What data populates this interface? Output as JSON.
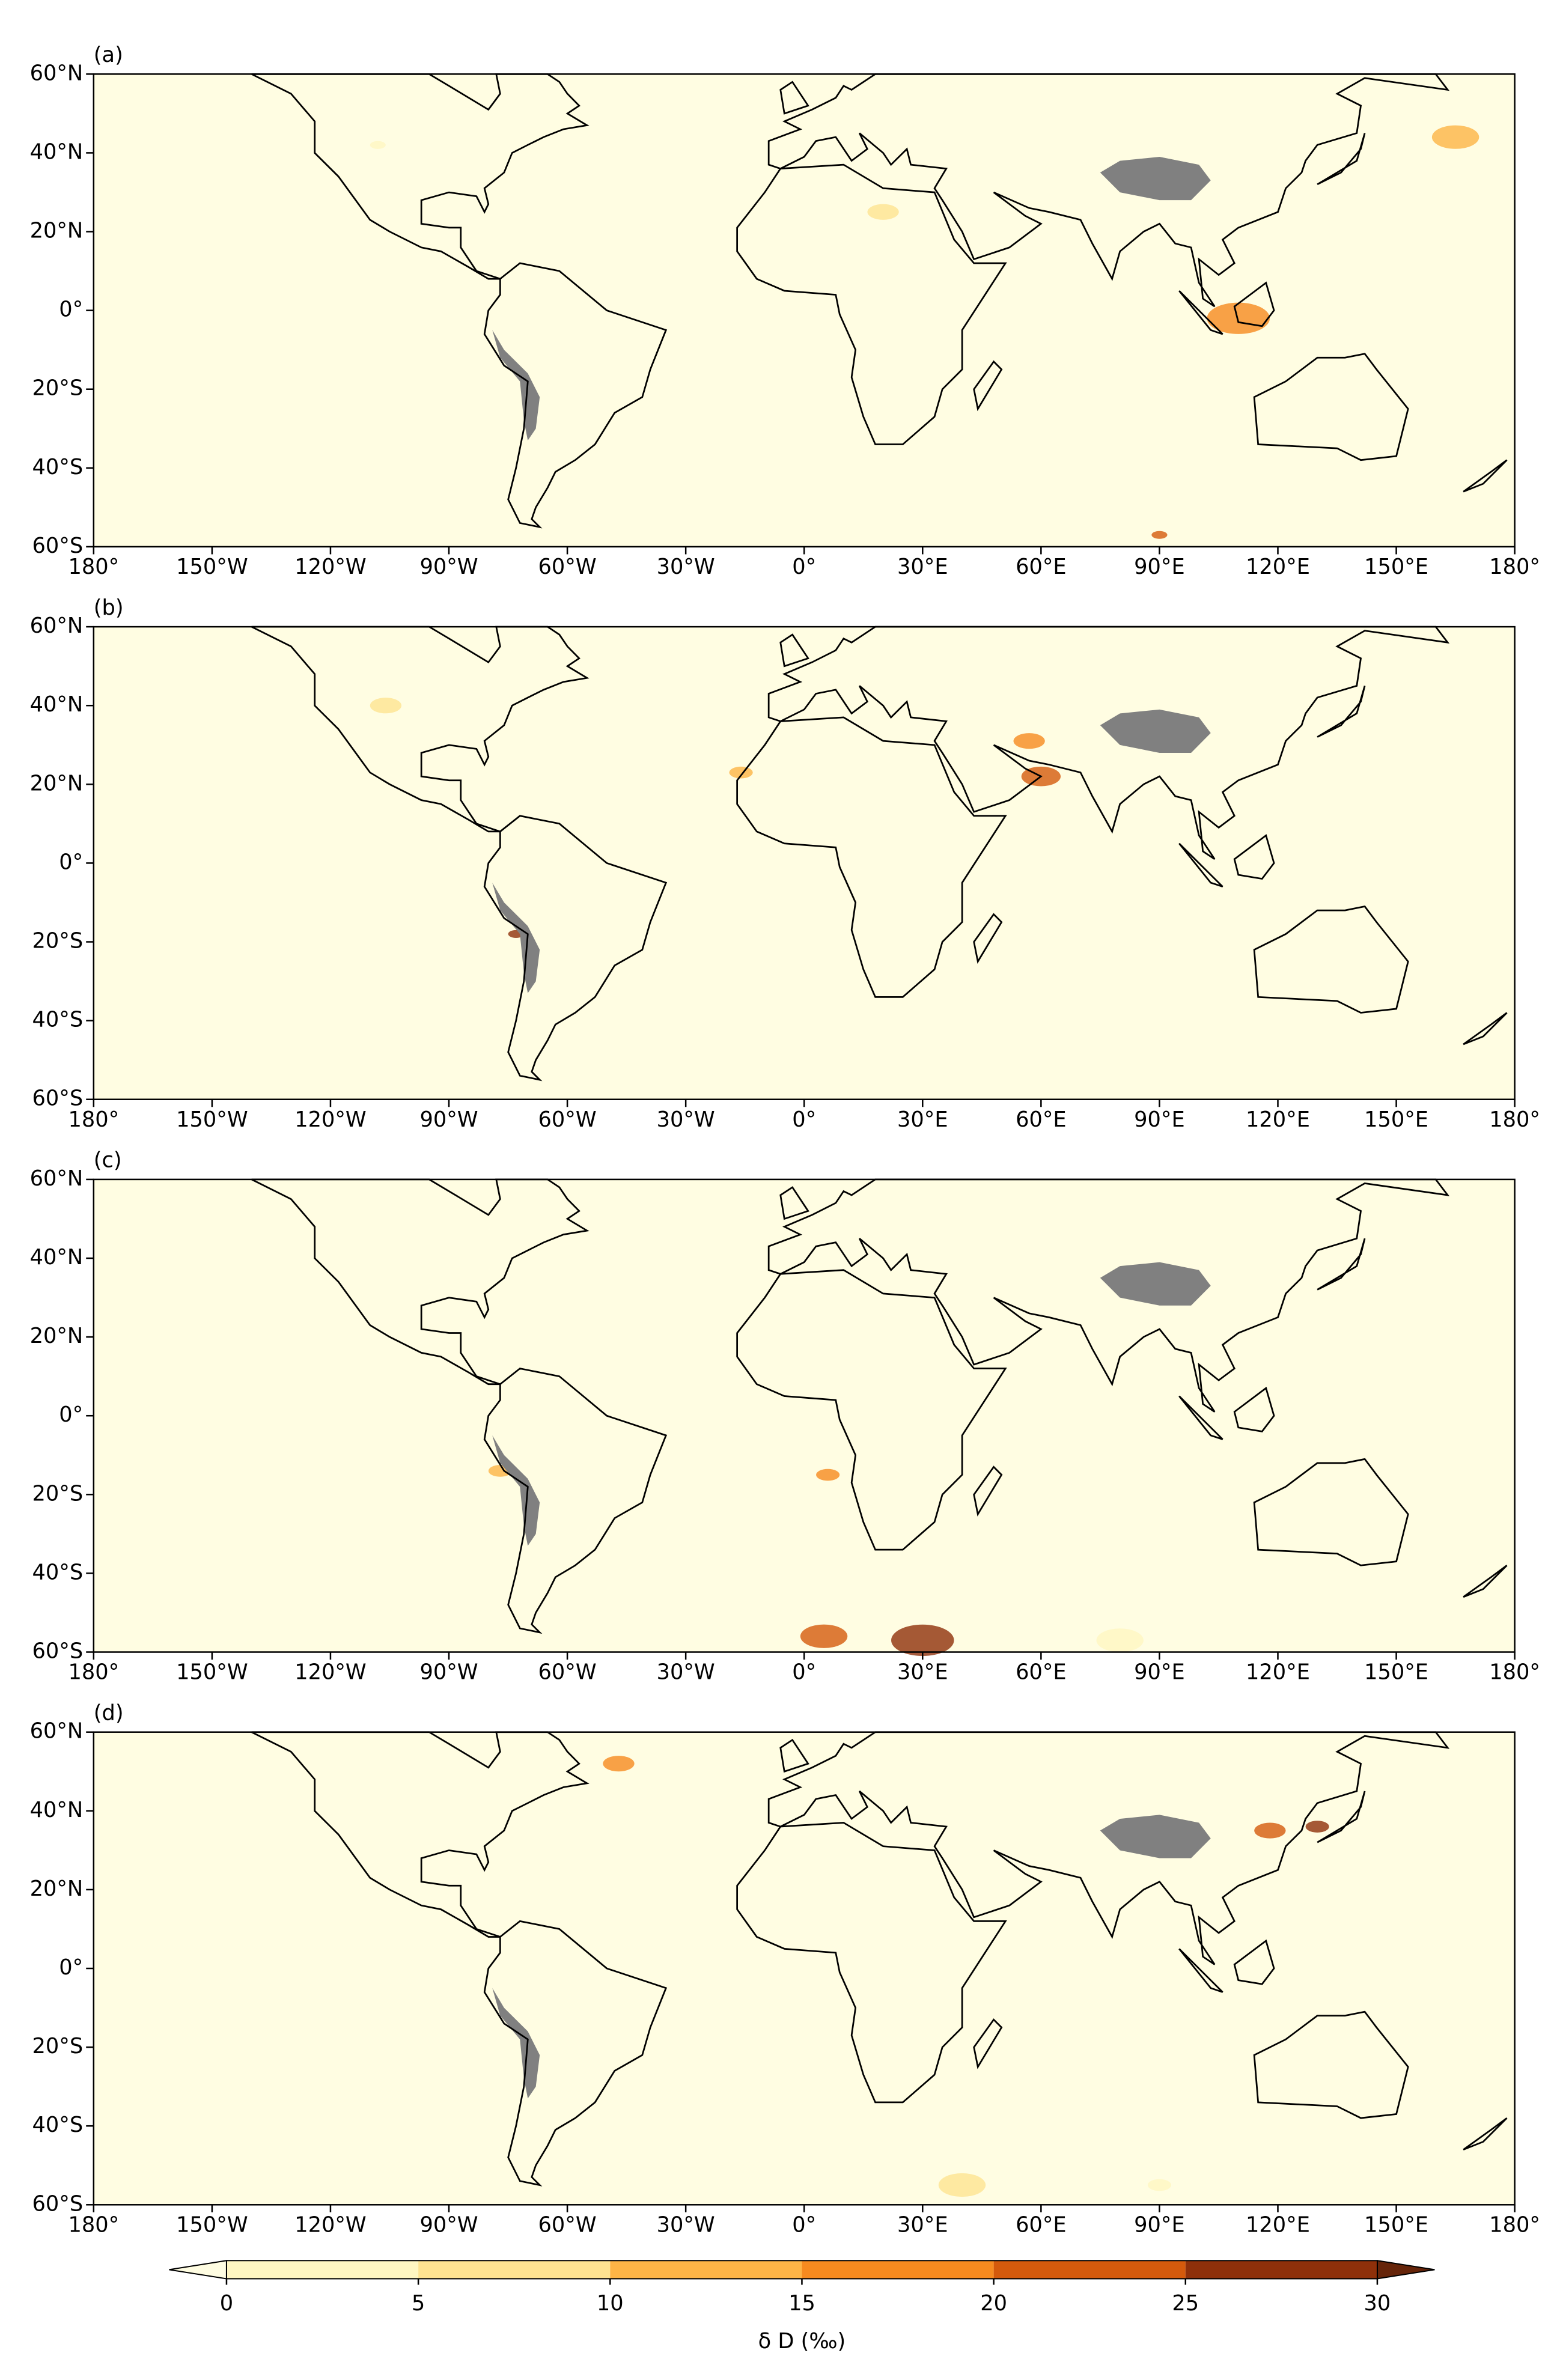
{
  "panels": [
    {
      "label": "(a)"
    },
    {
      "label": "(b)"
    },
    {
      "label": "(c)"
    },
    {
      "label": "(d)"
    }
  ],
  "map": {
    "xlim": [
      -180,
      180
    ],
    "ylim": [
      -60,
      60
    ],
    "background": "#fffde2",
    "land_mask_color": "#808080",
    "xticks": [
      {
        "value": -180,
        "label": "180°"
      },
      {
        "value": -150,
        "label": "150°W"
      },
      {
        "value": -120,
        "label": "120°W"
      },
      {
        "value": -90,
        "label": "90°W"
      },
      {
        "value": -60,
        "label": "60°W"
      },
      {
        "value": -30,
        "label": "30°W"
      },
      {
        "value": 0,
        "label": "0°"
      },
      {
        "value": 30,
        "label": "30°E"
      },
      {
        "value": 60,
        "label": "60°E"
      },
      {
        "value": 90,
        "label": "90°E"
      },
      {
        "value": 120,
        "label": "120°E"
      },
      {
        "value": 150,
        "label": "150°E"
      },
      {
        "value": 180,
        "label": "180°"
      }
    ],
    "yticks": [
      {
        "value": 60,
        "label": "60°N"
      },
      {
        "value": 40,
        "label": "40°N"
      },
      {
        "value": 20,
        "label": "20°N"
      },
      {
        "value": 0,
        "label": "0°"
      },
      {
        "value": -20,
        "label": "20°S"
      },
      {
        "value": -40,
        "label": "40°S"
      },
      {
        "value": -60,
        "label": "60°S"
      }
    ]
  },
  "colorbar": {
    "label": "δ D (‰)",
    "ticks": [
      0,
      5,
      10,
      15,
      20,
      25,
      30
    ],
    "lim": [
      0,
      30
    ],
    "colors": [
      "#fff6c2",
      "#fee391",
      "#fdb446",
      "#f68a1f",
      "#d45a0c",
      "#8e300a"
    ],
    "under_color": "#fffde2",
    "over_color": "#66250a"
  }
}
